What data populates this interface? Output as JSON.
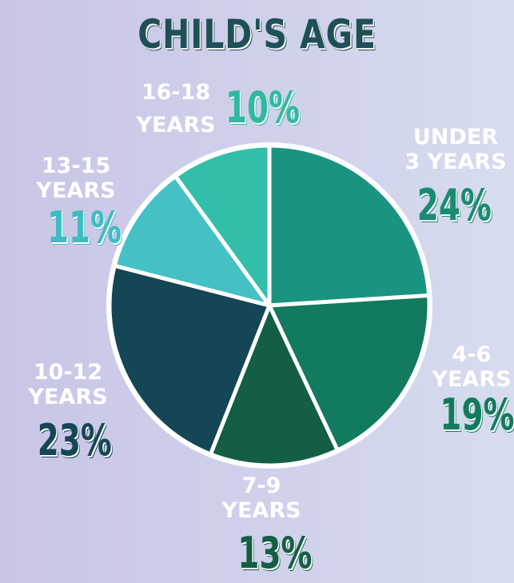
{
  "page": {
    "title": "CHILD'S AGE"
  },
  "chart_data": {
    "type": "pie",
    "title": "CHILD'S AGE",
    "slices": [
      {
        "name": "UNDER 3 YEARS",
        "label_line1": "UNDER",
        "label_line2": "3 YEARS",
        "value": 24,
        "pct_text": "24%",
        "color": "#1a9480",
        "pct_color": "#1b8a73"
      },
      {
        "name": "4-6 YEARS",
        "label_line1": "4-6",
        "label_line2": "YEARS",
        "value": 19,
        "pct_text": "19%",
        "color": "#127a5e",
        "pct_color": "#127a5e"
      },
      {
        "name": "7-9 YEARS",
        "label_line1": "7-9",
        "label_line2": "YEARS",
        "value": 13,
        "pct_text": "13%",
        "color": "#135e44",
        "pct_color": "#135e44"
      },
      {
        "name": "10-12 YEARS",
        "label_line1": "10-12",
        "label_line2": "YEARS",
        "value": 23,
        "pct_text": "23%",
        "color": "#154656",
        "pct_color": "#154656"
      },
      {
        "name": "13-15 YEARS",
        "label_line1": "13-15",
        "label_line2": "YEARS",
        "value": 11,
        "pct_text": "11%",
        "color": "#45c1c6",
        "pct_color": "#3fbcc2"
      },
      {
        "name": "16-18 YEARS",
        "label_line1": "16-18",
        "label_line2": "YEARS",
        "value": 10,
        "pct_text": "10%",
        "color": "#32bfaa",
        "pct_color": "#2fb9a3"
      }
    ],
    "grid": false,
    "legend": "none"
  }
}
